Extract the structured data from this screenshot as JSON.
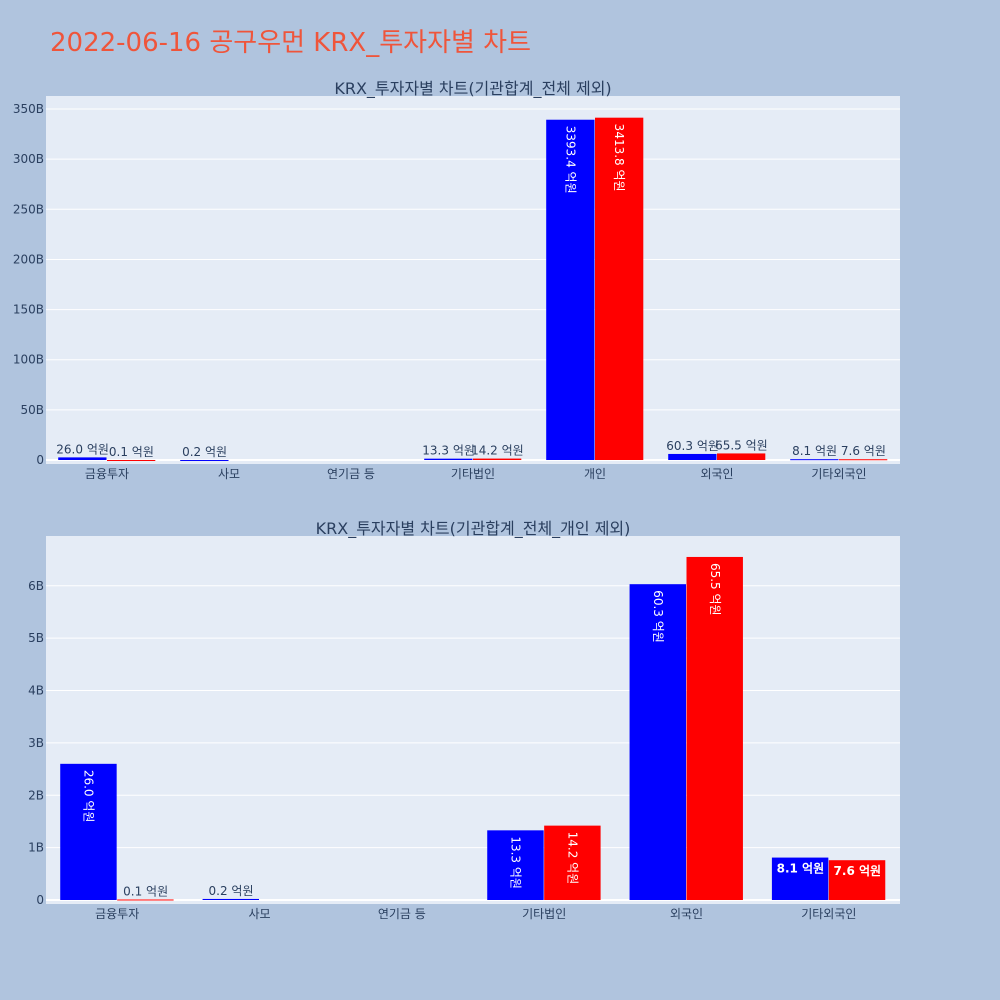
{
  "page": {
    "title": "2022-06-16 공구우먼 KRX_투자자별 차트"
  },
  "colors": {
    "background": "#b0c4de",
    "plot_bg": "#e5ecf6",
    "grid": "#ffffff",
    "title": "#ef553b",
    "series_buy": "#0000ff",
    "series_sell": "#ff0000"
  },
  "chart_data": [
    {
      "type": "bar",
      "title": "KRX_투자자별 차트(기관합계_전체 제외)",
      "categories": [
        "금융투자",
        "사모",
        "연기금 등",
        "기타법인",
        "개인",
        "외국인",
        "기타외국인"
      ],
      "series": [
        {
          "color": "#0000ff",
          "values": [
            2.6,
            0.02,
            0,
            1.33,
            339.34,
            6.03,
            0.81
          ],
          "labels": [
            "26.0 억원",
            "0.2 억원",
            "",
            "13.3 억원",
            "3393.4 억원",
            "60.3 억원",
            "8.1 억원"
          ]
        },
        {
          "color": "#ff0000",
          "values": [
            0.01,
            0,
            0,
            1.42,
            341.38,
            6.55,
            0.76
          ],
          "labels": [
            "0.1 억원",
            "",
            "",
            "14.2 억원",
            "3413.8 억원",
            "65.5 억원",
            "7.6 억원"
          ]
        }
      ],
      "ylim": [
        0,
        363
      ],
      "yticks": [
        0,
        50,
        100,
        150,
        200,
        250,
        300,
        350
      ],
      "ytick_labels": [
        "0",
        "50B",
        "100B",
        "150B",
        "200B",
        "250B",
        "300B",
        "350B"
      ],
      "grid": true
    },
    {
      "type": "bar",
      "title": "KRX_투자자별 차트(기관합계_전체_개인 제외)",
      "categories": [
        "금융투자",
        "사모",
        "연기금 등",
        "기타법인",
        "외국인",
        "기타외국인"
      ],
      "series": [
        {
          "color": "#0000ff",
          "values": [
            2.6,
            0.02,
            0,
            1.33,
            6.03,
            0.81
          ],
          "labels": [
            "26.0 억원",
            "0.2 억원",
            "",
            "13.3 억원",
            "60.3 억원",
            "8.1 억원"
          ]
        },
        {
          "color": "#ff0000",
          "values": [
            0.01,
            0,
            0,
            1.42,
            6.55,
            0.76
          ],
          "labels": [
            "0.1 억원",
            "",
            "",
            "14.2 억원",
            "65.5 억원",
            "7.6 억원"
          ]
        }
      ],
      "ylim": [
        0,
        6.95
      ],
      "yticks": [
        0,
        1,
        2,
        3,
        4,
        5,
        6
      ],
      "ytick_labels": [
        "0",
        "1B",
        "2B",
        "3B",
        "4B",
        "5B",
        "6B"
      ],
      "grid": true
    }
  ]
}
